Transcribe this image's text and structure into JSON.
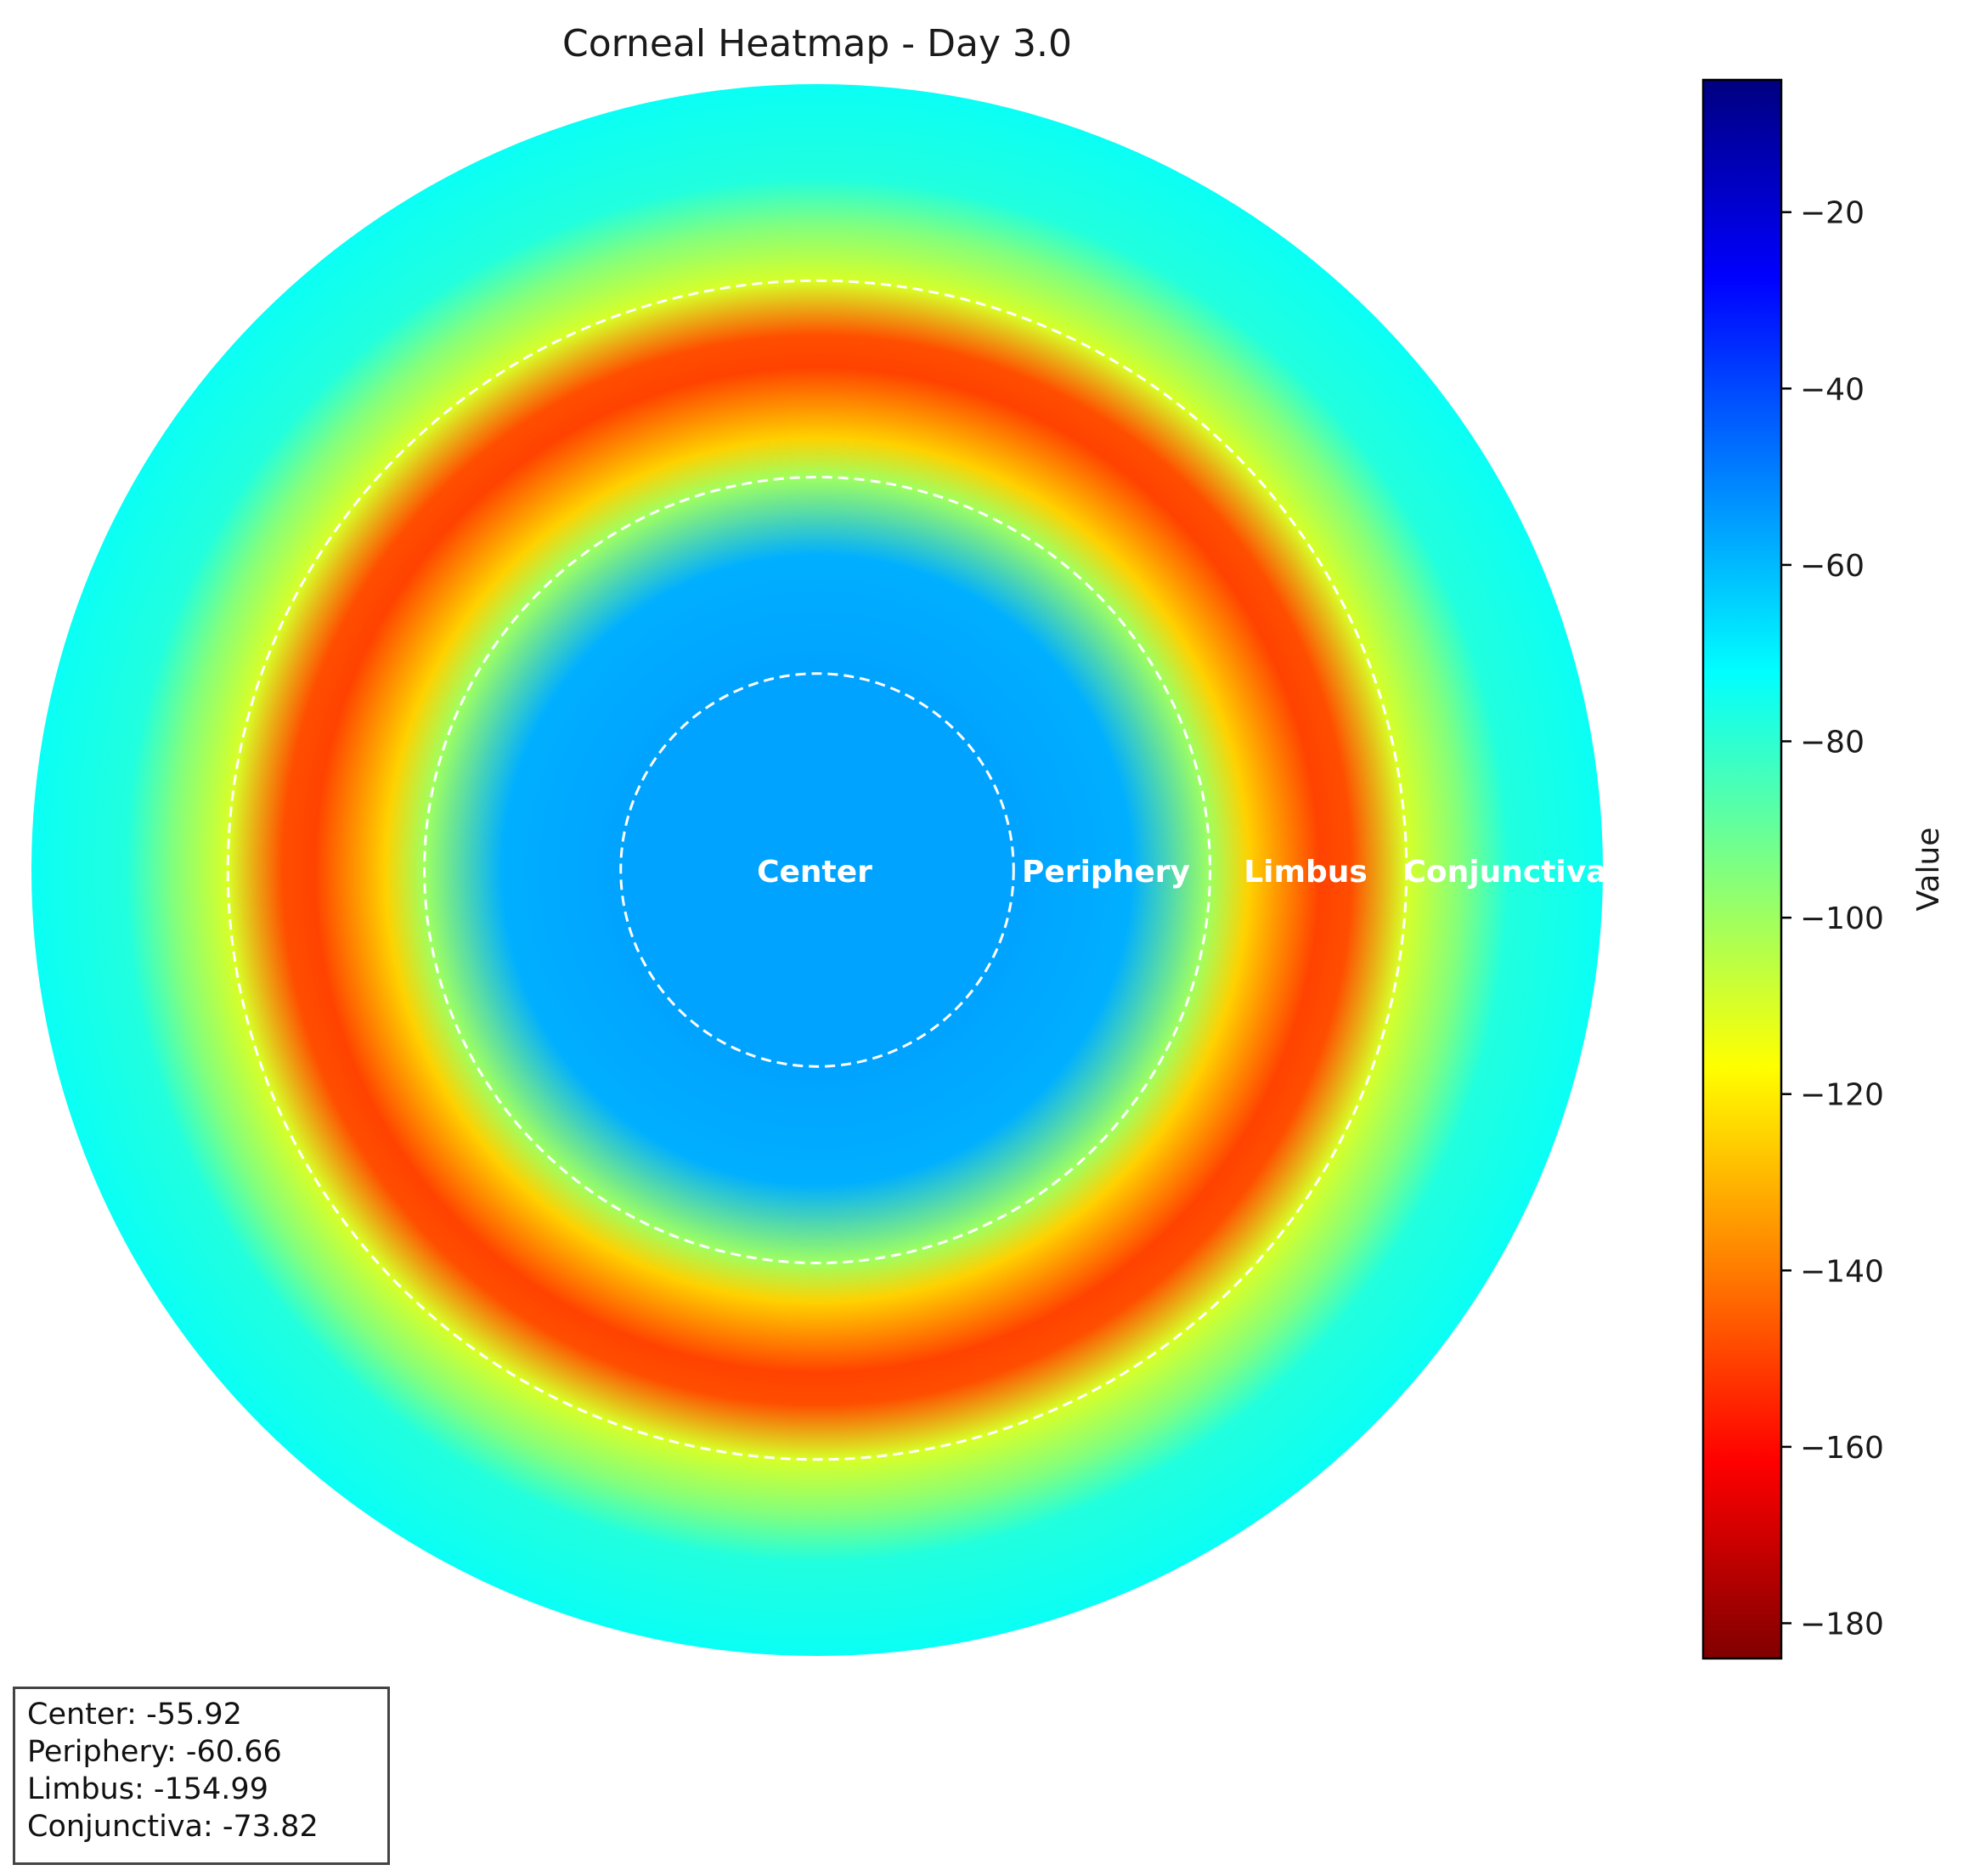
{
  "chart_data": {
    "type": "heatmap",
    "title": "Corneal Heatmap - Day 3.0",
    "colormap": "jet_r",
    "colorbar": {
      "label": "Value",
      "range": [
        -184,
        -5
      ],
      "ticks": [
        -20,
        -40,
        -60,
        -80,
        -100,
        -120,
        -140,
        -160,
        -180
      ],
      "tick_labels": [
        "−20",
        "−40",
        "−60",
        "−80",
        "−100",
        "−120",
        "−140",
        "−160",
        "−180"
      ]
    },
    "radial_profile": [
      {
        "r": 0.0,
        "value": -55.92
      },
      {
        "r": 0.25,
        "value": -55.92
      },
      {
        "r": 0.4,
        "value": -58
      },
      {
        "r": 0.5,
        "value": -100
      },
      {
        "r": 0.55,
        "value": -125
      },
      {
        "r": 0.64,
        "value": -150
      },
      {
        "r": 0.68,
        "value": -148
      },
      {
        "r": 0.75,
        "value": -110
      },
      {
        "r": 0.82,
        "value": -95
      },
      {
        "r": 0.88,
        "value": -78
      },
      {
        "r": 1.0,
        "value": -73.82
      }
    ],
    "regions": [
      {
        "name": "Center",
        "value": -55.92,
        "boundary_r": 0.25
      },
      {
        "name": "Periphery",
        "value": -60.66,
        "boundary_r": 0.5
      },
      {
        "name": "Limbus",
        "value": -154.99,
        "boundary_r": 0.75
      },
      {
        "name": "Conjunctiva",
        "value": -73.82,
        "boundary_r": 1.0
      }
    ]
  },
  "stats_box": {
    "lines": [
      "Center: -55.92",
      "Periphery: -60.66",
      "Limbus: -154.99",
      "Conjunctiva: -73.82"
    ]
  }
}
